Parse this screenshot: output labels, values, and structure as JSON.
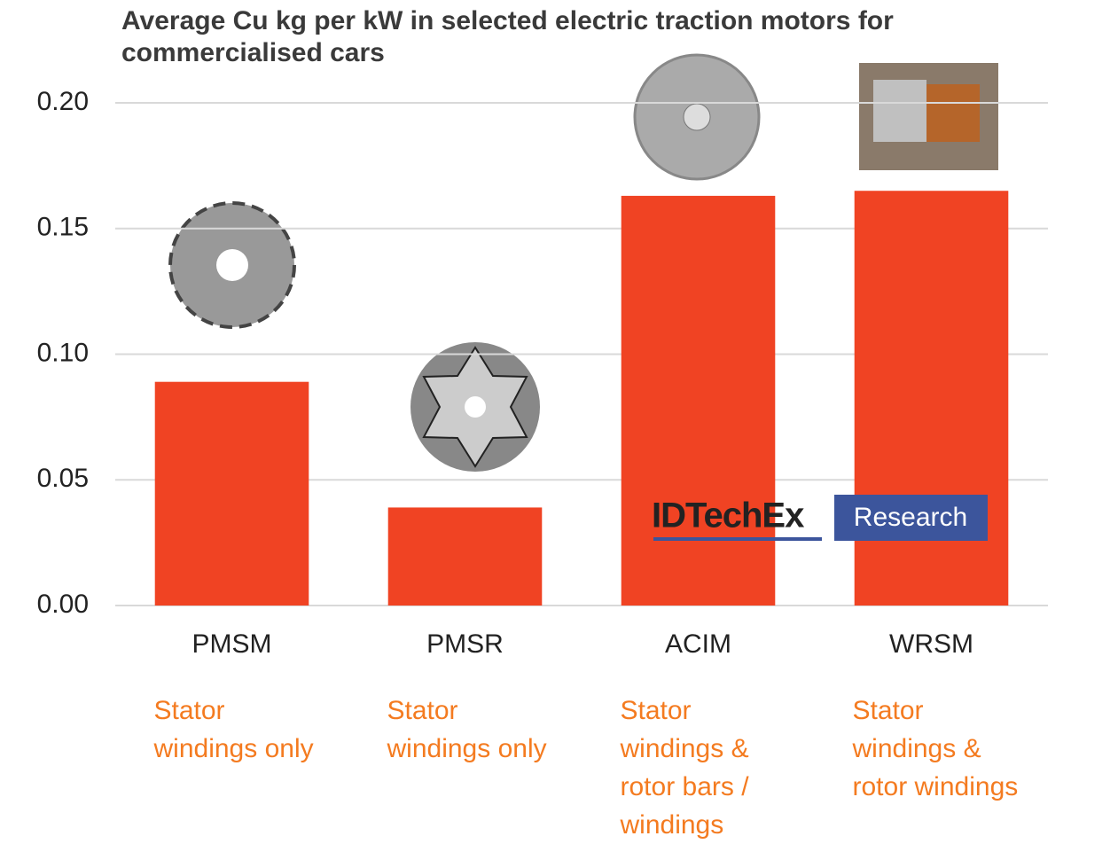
{
  "chart_data": {
    "type": "bar",
    "title": "Average Cu kg per kW in selected electric traction motors for commercialised cars",
    "categories": [
      "PMSM",
      "PMSR",
      "ACIM",
      "WRSM"
    ],
    "values": [
      0.089,
      0.039,
      0.163,
      0.165
    ],
    "color": "#f04323",
    "ylim": [
      0,
      0.2
    ],
    "yticks": [
      {
        "value": 0,
        "label": "0.00"
      },
      {
        "value": 0.05,
        "label": "0.05"
      },
      {
        "value": 0.1,
        "label": "0.10"
      },
      {
        "value": 0.15,
        "label": "0.15"
      },
      {
        "value": 0.2,
        "label": "0.20"
      }
    ],
    "grid": true,
    "annotations": [
      [
        "Stator",
        "windings only"
      ],
      [
        "Stator",
        "windings only"
      ],
      [
        "Stator",
        "windings &",
        "rotor bars /",
        "windings"
      ],
      [
        "Stator",
        "windings &",
        "rotor windings"
      ]
    ],
    "annotation_color": "#f47b20",
    "watermark": [
      "IDTechEx",
      "Research"
    ]
  }
}
